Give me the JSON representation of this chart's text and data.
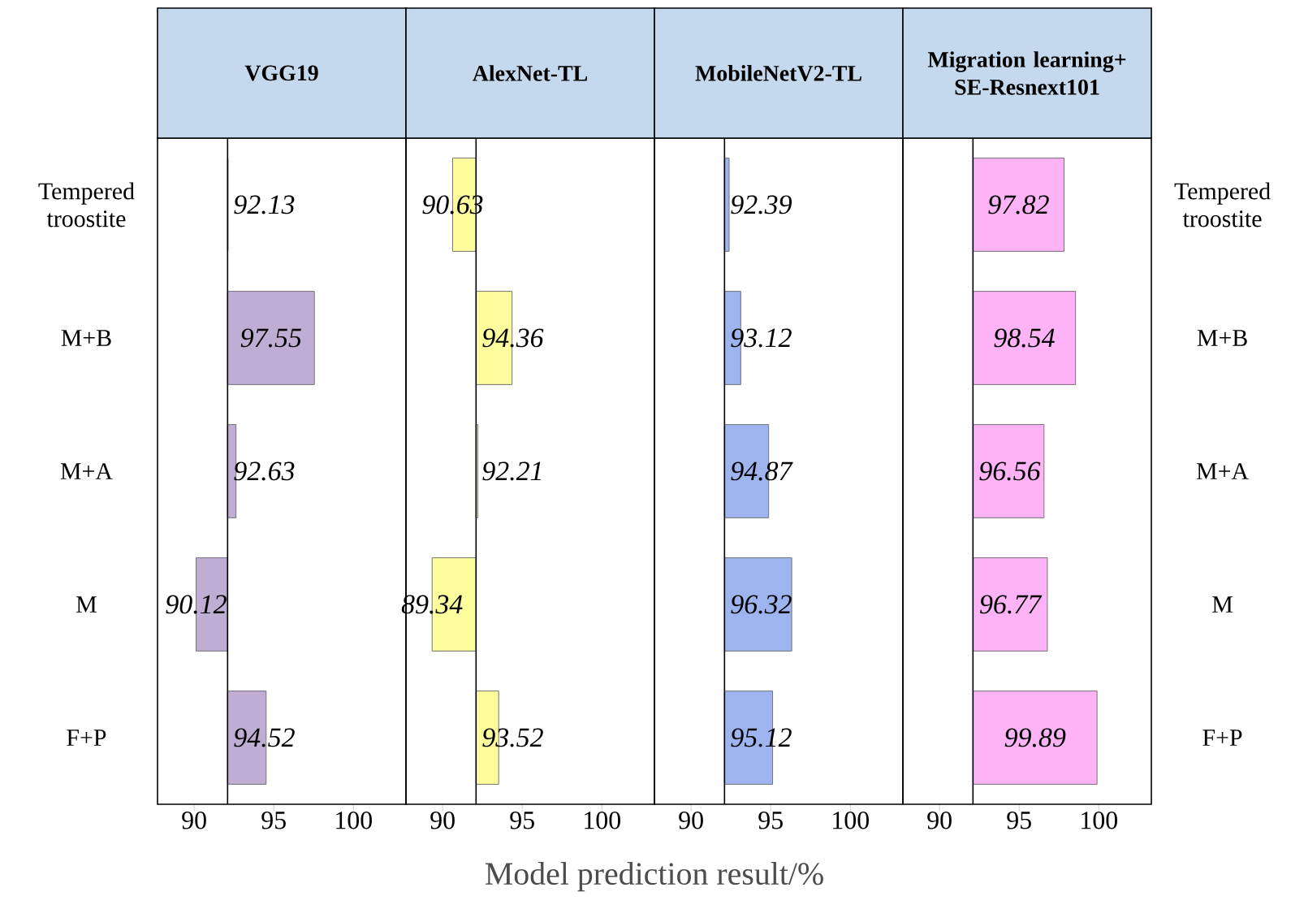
{
  "chart_data": [
    {
      "type": "bar",
      "orientation": "horizontal",
      "title": "VGG19",
      "categories": [
        "Tempered troostite",
        "M+B",
        "M+A",
        "M",
        "F+P"
      ],
      "base": [
        92.1,
        92.1,
        92.1,
        92.1,
        92.1
      ],
      "values": [
        0.03,
        5.45,
        0.53,
        -1.98,
        2.42
      ],
      "value_labels": [
        "92.13",
        "97.55",
        "92.63",
        "90.12",
        "94.52"
      ],
      "color": "#bfadd3",
      "xlim": [
        87.7,
        103.3
      ],
      "xticks": [
        90,
        95,
        100
      ],
      "ref_lines": [
        {
          "axis": "x",
          "value": 92.1
        }
      ]
    },
    {
      "type": "bar",
      "orientation": "horizontal",
      "title": "AlexNet-TL",
      "xlabel": "Model prediction result/%",
      "base": [
        92.1,
        92.1,
        92.1,
        92.1,
        92.1
      ],
      "values": [
        -1.47,
        2.26,
        0.11,
        -2.76,
        1.42
      ],
      "value_labels": [
        "90.63",
        "94.36",
        "92.21",
        "89.34",
        "93.52"
      ],
      "color": "#fdfd9e",
      "xlim": [
        87.7,
        103.3
      ],
      "xticks": [
        90,
        95,
        100
      ],
      "ref_lines": [
        {
          "axis": "x",
          "value": 92.1
        }
      ],
      "tick_labels": "x"
    },
    {
      "type": "bar",
      "orientation": "horizontal",
      "title": "MobileNetV2-TL",
      "base": [
        92.1,
        92.1,
        92.1,
        92.1,
        92.1
      ],
      "values": [
        0.29,
        1.02,
        2.77,
        4.22,
        3.02
      ],
      "value_labels": [
        "92.39",
        "93.12",
        "94.87",
        "96.32",
        "95.12"
      ],
      "color": "#9db4ee",
      "xlim": [
        87.7,
        103.3
      ],
      "xticks": [
        90,
        95,
        100
      ],
      "ref_lines": [
        {
          "axis": "x",
          "value": 92.1
        }
      ],
      "tick_labels": "x"
    },
    {
      "type": "bar",
      "orientation": "horizontal",
      "title": "Migration learning+ SE-Resnext101",
      "categories": [
        "Tempered troostite",
        "M+B",
        "M+A",
        "M",
        "F+P"
      ],
      "base": [
        92.1,
        92.1,
        92.1,
        92.1,
        92.1
      ],
      "values": [
        5.72,
        6.44,
        4.46,
        4.67,
        7.79
      ],
      "value_labels": [
        "97.82",
        "98.54",
        "96.56",
        "96.77",
        "99.89"
      ],
      "color": "#fdb3f6",
      "xlim": [
        87.7,
        103.3
      ],
      "xticks": [
        90,
        95,
        100
      ],
      "ref_lines": [
        {
          "axis": "x",
          "value": 92.1
        }
      ]
    }
  ]
}
